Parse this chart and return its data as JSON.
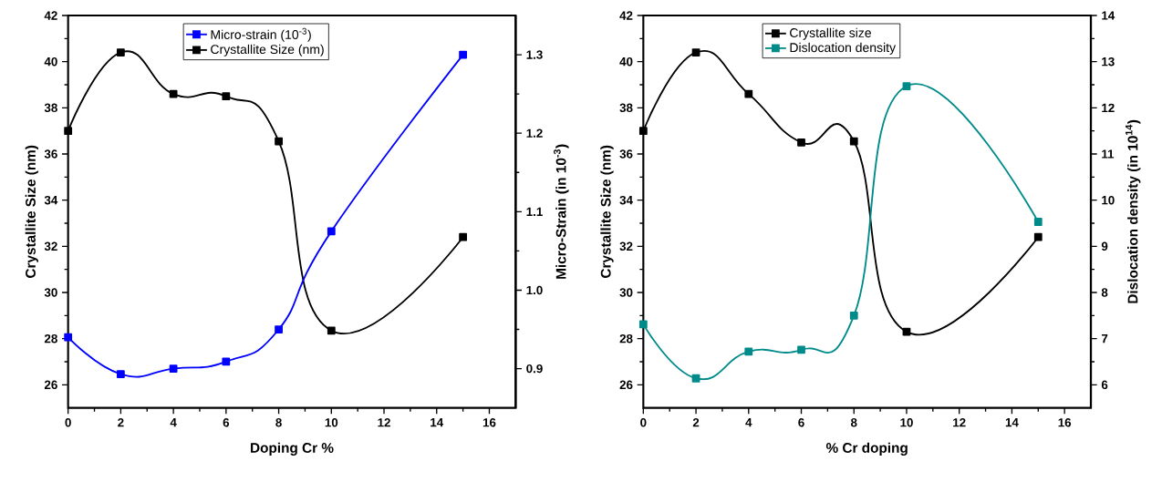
{
  "chart_data": [
    {
      "type": "line",
      "xlabel": "Doping Cr %",
      "ylabel": "Crystallite Size (nm)",
      "y2label": "Micro-Strain (in 10$^{-3}$)",
      "x": [
        0,
        2,
        4,
        6,
        8,
        10,
        15
      ],
      "xlim": [
        0,
        17
      ],
      "xticks": [
        0,
        2,
        4,
        6,
        8,
        10,
        12,
        14,
        16
      ],
      "ylim": [
        25,
        42
      ],
      "yticks": [
        26,
        28,
        30,
        32,
        34,
        36,
        38,
        40,
        42
      ],
      "y2lim": [
        0.85,
        1.35
      ],
      "y2ticks": [
        0.9,
        {
          "value": 1.0,
          "label": "1.0"
        },
        1.1,
        1.2,
        1.3
      ],
      "series": [
        {
          "name": "Micro-strain (10$^{-3}$)",
          "color": "#0000ff",
          "axis": "y2",
          "values": [
            0.94,
            0.893,
            0.9,
            0.909,
            0.95,
            1.075,
            1.3
          ]
        },
        {
          "name": "Crystallite Size (nm)",
          "color": "#000000",
          "values": [
            37.0,
            40.4,
            38.6,
            38.5,
            36.55,
            28.35,
            32.4
          ]
        }
      ],
      "legend": "top",
      "marker": "square",
      "line_style": "solid"
    },
    {
      "type": "line",
      "xlabel": "% Cr doping",
      "ylabel": "Crystallite Size (nm)",
      "y2label": "Dislocation density (in 10$^{14}$)",
      "x": [
        0,
        2,
        4,
        6,
        8,
        10,
        15
      ],
      "xlim": [
        0,
        17
      ],
      "xticks": [
        0,
        2,
        4,
        6,
        8,
        10,
        12,
        14,
        16
      ],
      "ylim": [
        25,
        42
      ],
      "yticks": [
        26,
        28,
        30,
        32,
        34,
        36,
        38,
        40,
        42
      ],
      "y2lim": [
        5.5,
        14
      ],
      "y2ticks": [
        6,
        7,
        8,
        9,
        10,
        11,
        12,
        13,
        14
      ],
      "series": [
        {
          "name": "Crystallite size",
          "color": "#000000",
          "values": [
            37.0,
            40.4,
            38.6,
            36.5,
            36.55,
            28.3,
            32.4
          ]
        },
        {
          "name": "Dislocation density",
          "color": "#008b8b",
          "axis": "y2",
          "values": [
            7.31,
            6.14,
            6.72,
            6.76,
            7.5,
            12.47,
            9.53
          ]
        }
      ],
      "legend": "top",
      "marker": "square",
      "line_style": "solid"
    }
  ]
}
